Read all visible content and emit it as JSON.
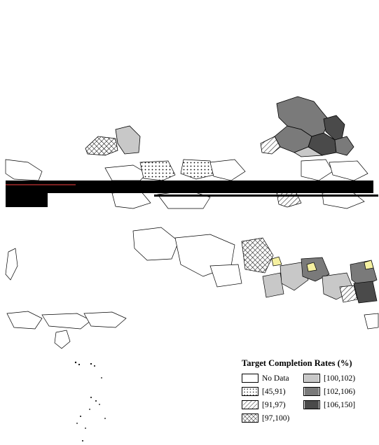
{
  "legend": {
    "title": "Target Completion Rates (%)",
    "items": [
      {
        "label": "No Data",
        "pattern": "none",
        "color": "#ffffff"
      },
      {
        "label": "[45,91)",
        "pattern": "dots",
        "color": "#ffffff"
      },
      {
        "label": "[91,97)",
        "pattern": "diagonal-lines",
        "color": "#ffffff"
      },
      {
        "label": "[97,100)",
        "pattern": "crosshatch",
        "color": "#ffffff"
      },
      {
        "label": "[100,102)",
        "pattern": "solid",
        "color": "#c8c8c8"
      },
      {
        "label": "[102,106)",
        "pattern": "solid",
        "color": "#7a7a7a"
      },
      {
        "label": "[106,150]",
        "pattern": "solid",
        "color": "#4a4a4a"
      }
    ]
  },
  "colors": {
    "boundary": "#000000",
    "background": "#ffffff",
    "glitch_band": "#000000",
    "highlight": "#f5f0a0"
  }
}
